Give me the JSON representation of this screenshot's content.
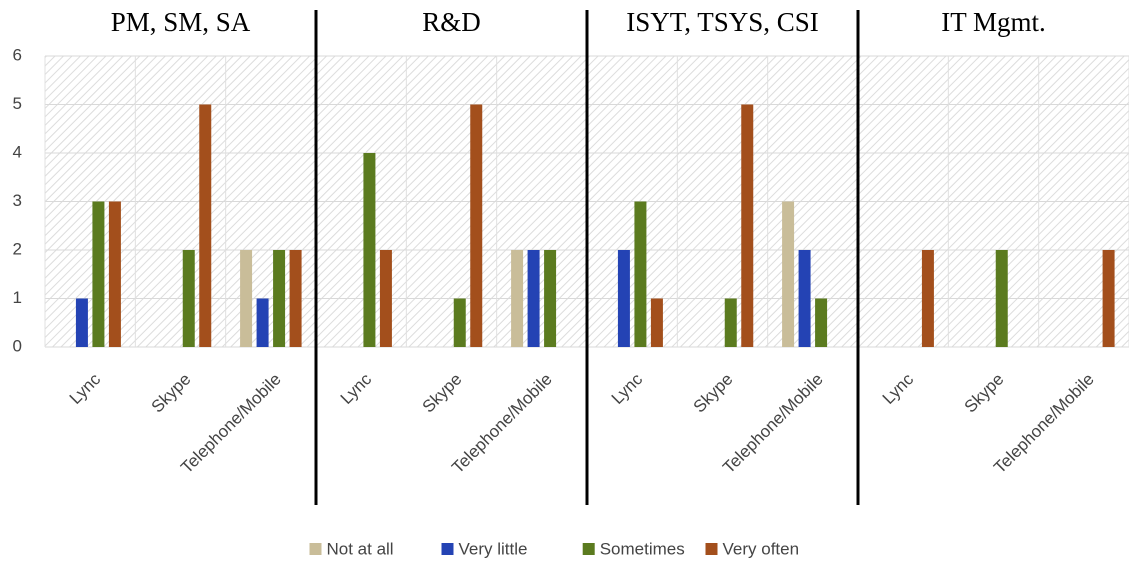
{
  "chart_data": {
    "type": "bar",
    "groups": [
      "PM, SM, SA",
      "R&D",
      "ISYT, TSYS, CSI",
      "IT Mgmt."
    ],
    "categories": [
      "Lync",
      "Skype",
      "Telephone/Mobile",
      "Lync",
      "Skype",
      "Telephone/Mobile",
      "Lync",
      "Skype",
      "Telephone/Mobile",
      "Lync",
      "Skype",
      "Telephone/Mobile"
    ],
    "series": [
      {
        "name": "Not at all",
        "color": "#c9bd99",
        "values": [
          0,
          0,
          2,
          0,
          0,
          2,
          0,
          0,
          3,
          0,
          0,
          0
        ]
      },
      {
        "name": "Very little",
        "color": "#2443b4",
        "values": [
          1,
          0,
          1,
          0,
          0,
          2,
          2,
          0,
          2,
          0,
          0,
          0
        ]
      },
      {
        "name": "Sometimes",
        "color": "#5b7b1f",
        "values": [
          3,
          2,
          2,
          4,
          1,
          2,
          3,
          1,
          1,
          0,
          2,
          0
        ]
      },
      {
        "name": "Very often",
        "color": "#a34f1c",
        "values": [
          3,
          5,
          2,
          2,
          5,
          0,
          1,
          5,
          0,
          2,
          0,
          2
        ]
      }
    ],
    "ylim": [
      0,
      6
    ],
    "yticks": [
      0,
      1,
      2,
      3,
      4,
      5,
      6
    ],
    "grid": true,
    "legend": "bottom"
  }
}
